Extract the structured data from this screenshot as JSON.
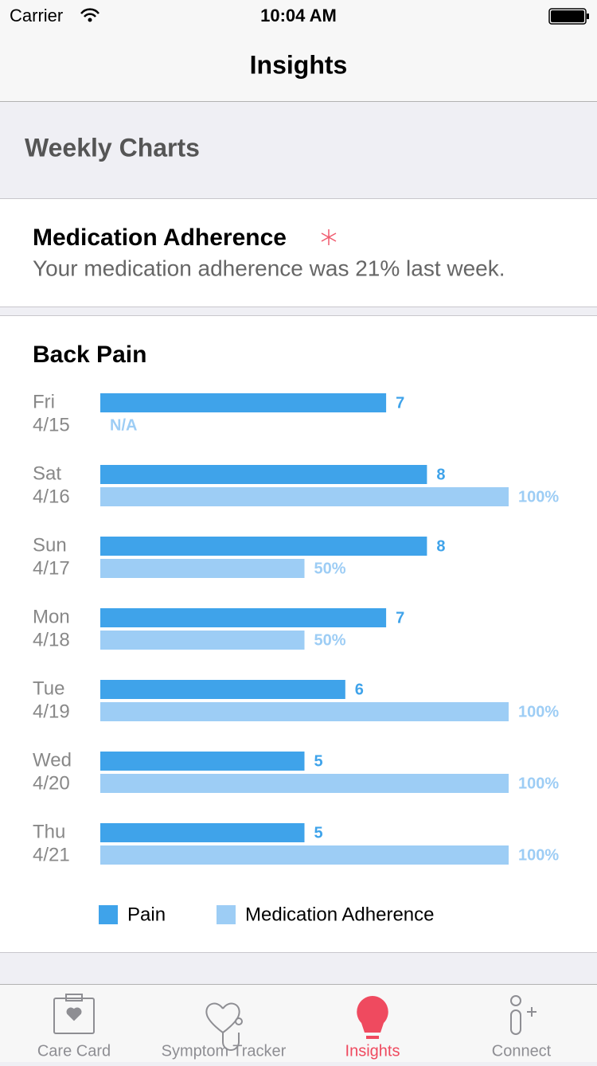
{
  "status_bar": {
    "carrier": "Carrier",
    "time": "10:04 AM"
  },
  "nav": {
    "title": "Insights"
  },
  "section": {
    "title": "Weekly Charts"
  },
  "adherence_card": {
    "title": "Medication Adherence",
    "text": "Your medication adherence was 21% last week."
  },
  "chart_data": {
    "type": "bar",
    "orientation": "horizontal",
    "title": "Back Pain",
    "categories": [
      "Fri",
      "Sat",
      "Sun",
      "Mon",
      "Tue",
      "Wed",
      "Thu"
    ],
    "category_dates": [
      "4/15",
      "4/16",
      "4/17",
      "4/18",
      "4/19",
      "4/20",
      "4/21"
    ],
    "xlim": [
      0,
      10
    ],
    "x2lim": [
      0,
      100
    ],
    "series": [
      {
        "name": "Pain",
        "color": "#3fa3ea",
        "values": [
          7,
          8,
          8,
          7,
          6,
          5,
          5
        ]
      },
      {
        "name": "Medication Adherence",
        "color": "#9dcdf5",
        "axis": "x2",
        "values": [
          null,
          100,
          50,
          50,
          100,
          100,
          100
        ],
        "value_labels": [
          "N/A",
          "100%",
          "50%",
          "50%",
          "100%",
          "100%",
          "100%"
        ]
      }
    ]
  },
  "tabs": [
    {
      "label": "Care Card"
    },
    {
      "label": "Symptom Tracker"
    },
    {
      "label": "Insights",
      "active": true
    },
    {
      "label": "Connect"
    }
  ]
}
